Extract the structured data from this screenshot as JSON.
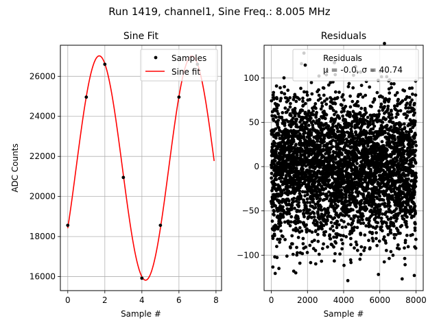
{
  "figure": {
    "suptitle": "Run 1419, channel1, Sine Freq.: 8.005 MHz"
  },
  "chart_data": [
    {
      "type": "line",
      "title": "Sine Fit",
      "xlabel": "Sample #",
      "ylabel": "ADC Counts",
      "xlim": [
        -0.4,
        8.3
      ],
      "ylim": [
        15300,
        27550
      ],
      "xticks": [
        0,
        2,
        4,
        6,
        8
      ],
      "yticks": [
        16000,
        18000,
        20000,
        22000,
        24000,
        26000
      ],
      "grid": true,
      "legend_location": "top-right",
      "series": [
        {
          "name": "Samples",
          "style": "points",
          "color": "#000000",
          "x": [
            0,
            1,
            2,
            3,
            4,
            5,
            6,
            7
          ],
          "y": [
            18560,
            24960,
            26600,
            20950,
            15920,
            18560,
            24960,
            26600
          ]
        },
        {
          "name": "Sine fit",
          "style": "line",
          "color": "#ff0000",
          "model": {
            "offset": 21420,
            "amplitude": 5600,
            "period": 5.0,
            "phase_sample": 0.45
          },
          "x_range": [
            0,
            7.9
          ]
        }
      ]
    },
    {
      "type": "scatter",
      "title": "Residuals",
      "xlabel": "Sample #",
      "xlim": [
        -400,
        8400
      ],
      "ylim": [
        -140,
        137
      ],
      "xticks": [
        0,
        2000,
        4000,
        6000,
        8000
      ],
      "yticks": [
        -100,
        -50,
        0,
        50,
        100
      ],
      "grid": true,
      "legend_location": "top-right",
      "series": [
        {
          "name": "Residuals",
          "legend_stats": "μ = -0.0, σ = 40.74",
          "color": "#000000",
          "n_points": 8000,
          "mean": 0.0,
          "std": 40.74,
          "cluster_period": 200
        }
      ]
    }
  ]
}
